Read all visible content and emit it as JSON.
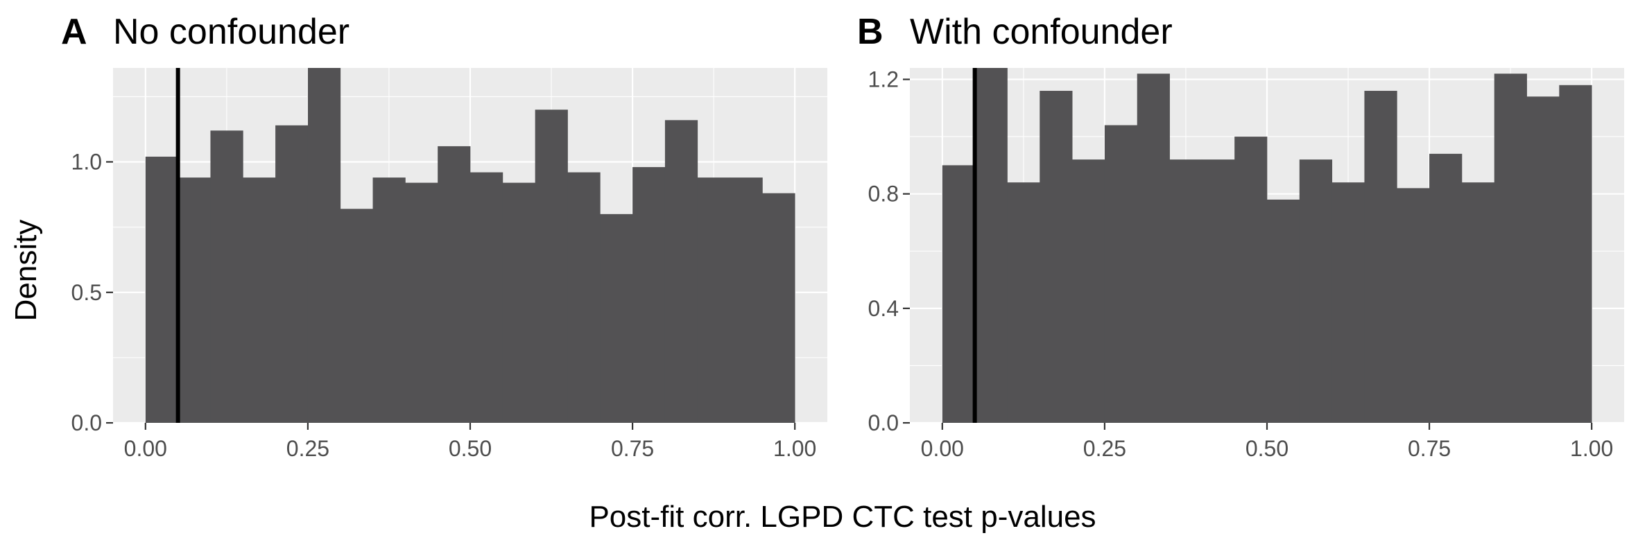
{
  "figure": {
    "xlabel": "Post-fit corr. LGPD CTC test p-values",
    "ylabel": "Density"
  },
  "chart_data": [
    {
      "type": "bar",
      "panel": "A",
      "title": "No confounder",
      "xlim": [
        -0.05,
        1.05
      ],
      "ylim": [
        0,
        1.36
      ],
      "xticks": [
        0.0,
        0.25,
        0.5,
        0.75,
        1.0
      ],
      "xtick_labels": [
        "0.00",
        "0.25",
        "0.50",
        "0.75",
        "1.00"
      ],
      "yticks": [
        0.0,
        0.5,
        1.0
      ],
      "ytick_labels": [
        "0.0",
        "0.5",
        "1.0"
      ],
      "bin_edges": [
        0.0,
        0.05,
        0.1,
        0.15,
        0.2,
        0.25,
        0.3,
        0.35,
        0.4,
        0.45,
        0.5,
        0.55,
        0.6,
        0.65,
        0.7,
        0.75,
        0.8,
        0.85,
        0.9,
        0.95,
        1.0
      ],
      "values": [
        1.02,
        0.94,
        1.12,
        0.94,
        1.14,
        1.36,
        0.82,
        0.94,
        0.92,
        1.06,
        0.96,
        0.92,
        1.2,
        0.96,
        0.8,
        0.98,
        1.16,
        0.94,
        0.94,
        0.88
      ],
      "vline": 0.05,
      "grid": true
    },
    {
      "type": "bar",
      "panel": "B",
      "title": "With confounder",
      "xlim": [
        -0.05,
        1.05
      ],
      "ylim": [
        0,
        1.24
      ],
      "xticks": [
        0.0,
        0.25,
        0.5,
        0.75,
        1.0
      ],
      "xtick_labels": [
        "0.00",
        "0.25",
        "0.50",
        "0.75",
        "1.00"
      ],
      "yticks": [
        0.0,
        0.4,
        0.8,
        1.2
      ],
      "ytick_labels": [
        "0.0",
        "0.4",
        "0.8",
        "1.2"
      ],
      "bin_edges": [
        0.0,
        0.05,
        0.1,
        0.15,
        0.2,
        0.25,
        0.3,
        0.35,
        0.4,
        0.45,
        0.5,
        0.55,
        0.6,
        0.65,
        0.7,
        0.75,
        0.8,
        0.85,
        0.9,
        0.95,
        1.0
      ],
      "values": [
        0.9,
        1.24,
        0.84,
        1.16,
        0.92,
        1.04,
        1.22,
        0.92,
        0.92,
        1.0,
        0.78,
        0.92,
        0.84,
        1.16,
        0.82,
        0.94,
        0.84,
        1.22,
        1.14,
        1.18
      ],
      "vline": 0.05,
      "grid": true
    }
  ]
}
